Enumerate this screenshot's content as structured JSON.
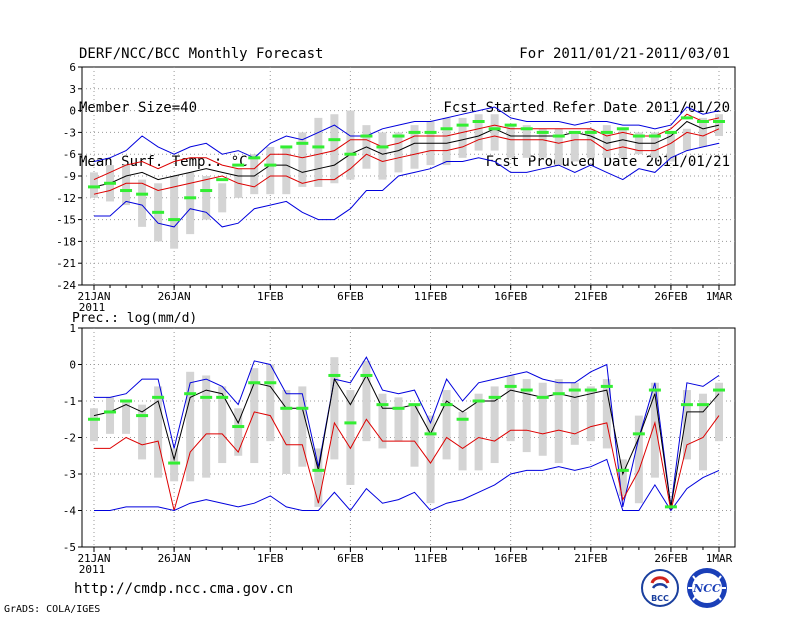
{
  "header": {
    "left": [
      "DERF/NCC/BCC Monthly Forecast",
      "Member Size=40",
      "Mean Surf. Temp.: °C"
    ],
    "right": [
      "For 2011/01/21-2011/03/01",
      "Fcst Started Refer Date 2011/01/20",
      "Fcst Produced Date 2011/01/21"
    ]
  },
  "footer": {
    "url": "http://cmdp.ncc.cma.gov.cn",
    "credit": "GrADS: COLA/IGES"
  },
  "logos": {
    "bcc": "BCC",
    "ncc": "NCC"
  },
  "colors": {
    "envelope": "#0000dd",
    "spread": "#dd0000",
    "mean": "#000000",
    "median": "#33ee33",
    "box": "#d4d4d4"
  },
  "chart_data": [
    {
      "type": "line",
      "title": "Mean Surf. Temp.: °C",
      "xlabel": "",
      "ylabel": "",
      "ylim": [
        -24,
        6
      ],
      "yticks": [
        6,
        3,
        0,
        -3,
        -6,
        -9,
        -12,
        -15,
        -18,
        -21,
        -24
      ],
      "x_ticks": [
        {
          "day": 0,
          "label": "21JAN",
          "sub": "2011"
        },
        {
          "day": 5,
          "label": "26JAN"
        },
        {
          "day": 11,
          "label": "1FEB"
        },
        {
          "day": 16,
          "label": "6FEB"
        },
        {
          "day": 21,
          "label": "11FEB"
        },
        {
          "day": 26,
          "label": "16FEB"
        },
        {
          "day": 31,
          "label": "21FEB"
        },
        {
          "day": 36,
          "label": "26FEB"
        },
        {
          "day": 39,
          "label": "1MAR"
        }
      ],
      "box_top": [
        -8.5,
        -7.5,
        -7.5,
        -9.5,
        -10,
        -9,
        -8.5,
        -9,
        -10,
        -8,
        -6,
        -5,
        -5,
        -3,
        -1,
        -0.5,
        0,
        -2,
        -3,
        -3,
        -2,
        -1.5,
        -1,
        -1,
        -0.5,
        -0.5,
        -2,
        -2,
        -2.5,
        -2.5,
        -3,
        -2.5,
        -2,
        -2.5,
        -3,
        -3,
        -3,
        -2.5,
        -1,
        -0.5
      ],
      "box_bot": [
        -12,
        -12.5,
        -13,
        -16,
        -18,
        -19,
        -17,
        -15,
        -14,
        -12,
        -11.5,
        -11.5,
        -11.5,
        -10.5,
        -10.5,
        -10,
        -9.5,
        -8,
        -9.5,
        -8.5,
        -8,
        -7.5,
        -7.5,
        -6.5,
        -5.5,
        -5.5,
        -6.5,
        -6.5,
        -6.5,
        -7.5,
        -7,
        -6.5,
        -6.5,
        -6.5,
        -6,
        -6.5,
        -7,
        -5.5,
        -5,
        -3.5
      ],
      "series": [
        {
          "name": "max",
          "color": "#0000dd",
          "values": [
            -7,
            -6.5,
            -5.5,
            -3.5,
            -5,
            -6,
            -5,
            -4.5,
            -6,
            -5.5,
            -6.5,
            -4.5,
            -3.5,
            -4,
            -3,
            -2,
            -3.5,
            -3.5,
            -2.5,
            -2,
            -1.5,
            -1.5,
            -1,
            -0.5,
            0,
            0.5,
            -1,
            -1.5,
            -1.5,
            -1.5,
            -2,
            -1.5,
            -1.5,
            -2,
            -2,
            -2.5,
            -2,
            0.5,
            -0.5,
            0
          ]
        },
        {
          "name": "upper",
          "color": "#dd0000",
          "values": [
            -9.5,
            -8.5,
            -7.5,
            -7,
            -8,
            -7,
            -6.5,
            -6.5,
            -7.5,
            -8,
            -8,
            -6,
            -6,
            -6.5,
            -6,
            -5.5,
            -4,
            -4,
            -5,
            -4.5,
            -3.5,
            -3.5,
            -3.5,
            -3,
            -2.5,
            -2,
            -2.5,
            -2.5,
            -2.5,
            -2.5,
            -2.5,
            -2.5,
            -3.5,
            -3,
            -3.5,
            -3.5,
            -2.5,
            -0.5,
            -1.5,
            -1
          ]
        },
        {
          "name": "lower",
          "color": "#dd0000",
          "values": [
            -11.5,
            -11,
            -10,
            -10,
            -11,
            -10.5,
            -10,
            -9.5,
            -9,
            -10,
            -10.5,
            -9,
            -9,
            -10,
            -9.5,
            -9.5,
            -8,
            -6,
            -7,
            -6.5,
            -6,
            -5.5,
            -5.5,
            -5,
            -4,
            -3.5,
            -4,
            -4,
            -4,
            -4.5,
            -4,
            -4,
            -5.5,
            -5,
            -5.5,
            -5.5,
            -4.5,
            -3,
            -3.5,
            -2.5
          ]
        },
        {
          "name": "min",
          "color": "#0000dd",
          "values": [
            -14.5,
            -14.5,
            -12.5,
            -13,
            -15.5,
            -16,
            -13.5,
            -14,
            -16,
            -15.5,
            -13.5,
            -13,
            -12.5,
            -14,
            -15,
            -15,
            -13.5,
            -11,
            -11,
            -9,
            -8.5,
            -8,
            -7,
            -7,
            -6.5,
            -7,
            -8.5,
            -8.5,
            -8,
            -7.5,
            -8.5,
            -7.5,
            -8.5,
            -9.5,
            -8,
            -8.5,
            -6.5,
            -5.5,
            -5,
            -4.5
          ]
        },
        {
          "name": "mean",
          "color": "#000000",
          "values": [
            -10.5,
            -10,
            -9,
            -8.5,
            -9.5,
            -9,
            -8.5,
            -8,
            -8.5,
            -9,
            -9,
            -7.5,
            -7.5,
            -8.5,
            -8,
            -7.5,
            -6,
            -5,
            -6,
            -5.5,
            -4.5,
            -4.5,
            -4.5,
            -4,
            -3.5,
            -2.5,
            -3.5,
            -3.5,
            -3.5,
            -3.5,
            -3,
            -3.5,
            -4.5,
            -4,
            -4.5,
            -4.5,
            -3.5,
            -1.5,
            -2.5,
            -2
          ]
        }
      ],
      "median": [
        -10.5,
        -10,
        -11,
        -11.5,
        -14,
        -15,
        -12,
        -11,
        -9.5,
        -7.5,
        -6.5,
        -7.5,
        -5,
        -4.5,
        -5,
        -4,
        -6,
        -3.5,
        -5,
        -3.5,
        -3,
        -3,
        -2.5,
        -2,
        -1.5,
        -2.5,
        -2,
        -2.5,
        -3,
        -3.5,
        -3,
        -3,
        -3,
        -2.5,
        -3.5,
        -3.5,
        -3,
        -1,
        -1.5,
        -1.5
      ]
    },
    {
      "type": "line",
      "title": "Prec.: log(mm/d)",
      "xlabel": "",
      "ylabel": "",
      "ylim": [
        -5,
        1
      ],
      "yticks": [
        1,
        0,
        -1,
        -2,
        -3,
        -4,
        -5
      ],
      "x_ticks": [
        {
          "day": 0,
          "label": "21JAN",
          "sub": "2011"
        },
        {
          "day": 5,
          "label": "26JAN"
        },
        {
          "day": 11,
          "label": "1FEB"
        },
        {
          "day": 16,
          "label": "6FEB"
        },
        {
          "day": 21,
          "label": "11FEB"
        },
        {
          "day": 26,
          "label": "16FEB"
        },
        {
          "day": 31,
          "label": "21FEB"
        },
        {
          "day": 36,
          "label": "26FEB"
        },
        {
          "day": 39,
          "label": "1MAR"
        }
      ],
      "box_top": [
        -1.2,
        -0.9,
        -1,
        -1.1,
        -0.6,
        -2.3,
        -0.2,
        -0.3,
        -0.6,
        -1.2,
        -0.1,
        0,
        -0.7,
        -0.6,
        -2.3,
        0.2,
        -0.7,
        0.1,
        -0.8,
        -0.9,
        -1.1,
        -1.4,
        -0.7,
        -1.3,
        -0.8,
        -0.6,
        -0.3,
        -0.4,
        -0.5,
        -0.4,
        -0.5,
        -0.6,
        -0.4,
        -2.6,
        -1.4,
        -0.5,
        -3.9,
        -0.7,
        -0.8,
        -0.5
      ],
      "box_bot": [
        -2.1,
        -1.9,
        -1.9,
        -2.6,
        -3.1,
        -3.2,
        -3.2,
        -3.1,
        -2.7,
        -2.5,
        -2.7,
        -2.1,
        -3,
        -2.8,
        -3.9,
        -2.6,
        -3.3,
        -2.1,
        -2.3,
        -2.1,
        -2.8,
        -3.8,
        -2.6,
        -2.9,
        -2.9,
        -2.7,
        -2.1,
        -2.4,
        -2.5,
        -2.7,
        -2.2,
        -2.1,
        -2.3,
        -3.6,
        -3.8,
        -3.1,
        -3.9,
        -2.6,
        -2.9,
        -2.1
      ],
      "series": [
        {
          "name": "max",
          "color": "#0000dd",
          "values": [
            -0.9,
            -0.9,
            -0.8,
            -0.4,
            -0.4,
            -2.3,
            -0.5,
            -0.4,
            -0.6,
            -1.1,
            0.1,
            0,
            -0.8,
            -0.8,
            -2.8,
            -0.4,
            -0.5,
            0.2,
            -0.7,
            -0.8,
            -0.7,
            -1.6,
            -0.4,
            -1,
            -0.5,
            -0.4,
            -0.3,
            -0.2,
            -0.4,
            -0.5,
            -0.5,
            -0.2,
            0,
            -3.9,
            -2,
            -0.5,
            -3.9,
            -0.5,
            -0.6,
            -0.3
          ]
        },
        {
          "name": "upper",
          "color": "#000000",
          "values": [
            -1.4,
            -1.3,
            -1.1,
            -1.3,
            -1,
            -2.6,
            -0.9,
            -0.7,
            -0.8,
            -1.6,
            -0.5,
            -0.6,
            -1.2,
            -1.2,
            -2.9,
            -0.4,
            -1.1,
            -0.3,
            -1.2,
            -1.2,
            -1.1,
            -1.9,
            -1,
            -1.3,
            -1,
            -1,
            -0.7,
            -0.8,
            -0.9,
            -0.8,
            -0.9,
            -0.8,
            -0.7,
            -3,
            -2,
            -0.8,
            -3.9,
            -1.3,
            -1.3,
            -0.8
          ]
        },
        {
          "name": "lower",
          "color": "#dd0000",
          "values": [
            -2.3,
            -2.3,
            -2,
            -2.2,
            -2.1,
            -4,
            -2.4,
            -1.9,
            -1.9,
            -2.4,
            -1.3,
            -1.4,
            -2.2,
            -2.2,
            -3.8,
            -1.6,
            -2.3,
            -1.5,
            -2.1,
            -2.1,
            -2.1,
            -2.7,
            -2,
            -2.3,
            -2,
            -2.1,
            -1.8,
            -1.8,
            -1.9,
            -1.8,
            -1.9,
            -1.7,
            -1.6,
            -3.7,
            -2.9,
            -1.6,
            -4,
            -2.2,
            -2,
            -1.4
          ]
        },
        {
          "name": "min",
          "color": "#0000dd",
          "values": [
            -4,
            -4,
            -3.9,
            -3.9,
            -3.9,
            -4,
            -3.8,
            -3.7,
            -3.8,
            -3.9,
            -3.8,
            -3.6,
            -3.9,
            -4,
            -4,
            -3.5,
            -4,
            -3.4,
            -3.8,
            -3.7,
            -3.5,
            -4,
            -3.8,
            -3.7,
            -3.5,
            -3.3,
            -3,
            -2.9,
            -2.9,
            -2.8,
            -2.9,
            -2.8,
            -2.6,
            -4,
            -4,
            -3.3,
            -4,
            -3.4,
            -3.1,
            -2.9
          ]
        }
      ],
      "median": [
        -1.5,
        -1.3,
        -1,
        -1.4,
        -0.9,
        -2.7,
        -0.8,
        -0.9,
        -0.9,
        -1.7,
        -0.5,
        -0.5,
        -1.2,
        -1.2,
        -2.9,
        -0.3,
        -1.6,
        -0.3,
        -1.1,
        -1.2,
        -1.1,
        -1.9,
        -1.1,
        -1.5,
        -1,
        -0.9,
        -0.6,
        -0.7,
        -0.9,
        -0.8,
        -0.7,
        -0.7,
        -0.6,
        -2.9,
        -1.9,
        -0.7,
        -3.9,
        -1.1,
        -1.1,
        -0.7
      ]
    }
  ]
}
